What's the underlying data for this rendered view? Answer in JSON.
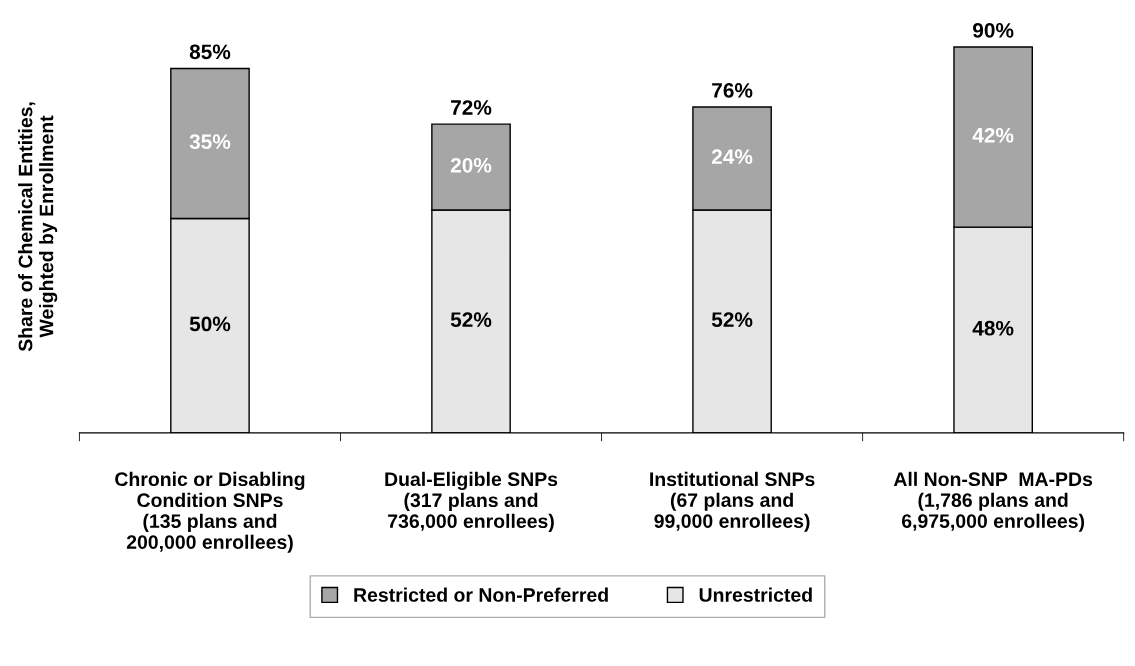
{
  "chart_data": {
    "type": "bar",
    "stacked": true,
    "ylabel": "Share of Chemical Entities,\nWeighted by Enrollment",
    "categories": [
      "Chronic or Disabling\nCondition SNPs\n(135 plans and\n200,000 enrollees)",
      "Dual-Eligible SNPs\n(317 plans and\n736,000 enrollees)",
      "Institutional SNPs\n(67 plans and\n99,000 enrollees)",
      "All Non-SNP  MA-PDs\n(1,786 plans and\n6,975,000 enrollees)"
    ],
    "series": [
      {
        "name": "Unrestricted",
        "color": "#e6e6e6",
        "values": [
          50,
          52,
          52,
          48
        ],
        "value_labels": [
          "50%",
          "52%",
          "52%",
          "48%"
        ]
      },
      {
        "name": "Restricted or Non-Preferred",
        "color": "#a6a6a6",
        "values": [
          35,
          20,
          24,
          42
        ],
        "value_labels": [
          "35%",
          "20%",
          "24%",
          "42%"
        ]
      }
    ],
    "totals": [
      "85%",
      "72%",
      "76%",
      "90%"
    ],
    "grid": false,
    "legend": "bottom"
  }
}
